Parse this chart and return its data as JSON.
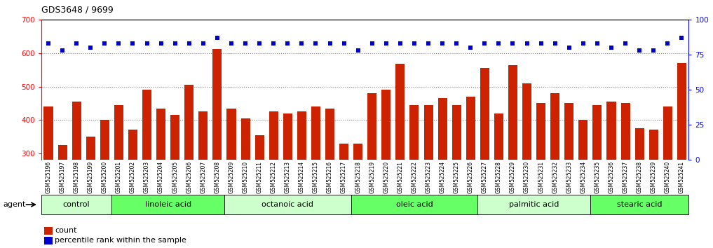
{
  "title": "GDS3648 / 9699",
  "samples": [
    "GSM525196",
    "GSM525197",
    "GSM525198",
    "GSM525199",
    "GSM525200",
    "GSM525201",
    "GSM525202",
    "GSM525203",
    "GSM525204",
    "GSM525205",
    "GSM525206",
    "GSM525207",
    "GSM525208",
    "GSM525209",
    "GSM525210",
    "GSM525211",
    "GSM525212",
    "GSM525213",
    "GSM525214",
    "GSM525215",
    "GSM525216",
    "GSM525217",
    "GSM525218",
    "GSM525219",
    "GSM525220",
    "GSM525221",
    "GSM525222",
    "GSM525223",
    "GSM525224",
    "GSM525225",
    "GSM525226",
    "GSM525227",
    "GSM525228",
    "GSM525229",
    "GSM525230",
    "GSM525231",
    "GSM525232",
    "GSM525233",
    "GSM525234",
    "GSM525235",
    "GSM525236",
    "GSM525237",
    "GSM525238",
    "GSM525239",
    "GSM525240",
    "GSM525241"
  ],
  "counts": [
    440,
    325,
    455,
    350,
    400,
    445,
    370,
    490,
    435,
    415,
    505,
    425,
    612,
    435,
    405,
    355,
    425,
    420,
    425,
    440,
    435,
    330,
    330,
    480,
    490,
    568,
    445,
    445,
    465,
    445,
    470,
    555,
    420,
    565,
    510,
    450,
    480,
    450,
    400,
    445,
    455,
    450,
    375,
    370,
    440,
    570
  ],
  "percentile_ranks": [
    83,
    78,
    83,
    80,
    83,
    83,
    83,
    83,
    83,
    83,
    83,
    83,
    87,
    83,
    83,
    83,
    83,
    83,
    83,
    83,
    83,
    83,
    78,
    83,
    83,
    83,
    83,
    83,
    83,
    83,
    80,
    83,
    83,
    83,
    83,
    83,
    83,
    80,
    83,
    83,
    80,
    83,
    78,
    78,
    83,
    87
  ],
  "bar_color": "#cc2200",
  "dot_color": "#0000cc",
  "ylim_left": [
    280,
    700
  ],
  "ylim_right": [
    0,
    100
  ],
  "yticks_left": [
    300,
    400,
    500,
    600,
    700
  ],
  "yticks_right": [
    0,
    25,
    50,
    75,
    100
  ],
  "grid_values": [
    400,
    500,
    600
  ],
  "groups": [
    {
      "label": "control",
      "start": 0,
      "end": 5
    },
    {
      "label": "linoleic acid",
      "start": 5,
      "end": 13
    },
    {
      "label": "octanoic acid",
      "start": 13,
      "end": 22
    },
    {
      "label": "oleic acid",
      "start": 22,
      "end": 31
    },
    {
      "label": "palmitic acid",
      "start": 31,
      "end": 39
    },
    {
      "label": "stearic acid",
      "start": 39,
      "end": 46
    }
  ],
  "group_colors": [
    "#ccffcc",
    "#66ff66",
    "#ccffcc",
    "#66ff66",
    "#ccffcc",
    "#66ff66"
  ],
  "legend_count_label": "count",
  "legend_pct_label": "percentile rank within the sample",
  "legend_count_color": "#cc2200",
  "legend_pct_color": "#0000cc",
  "agent_label": "agent",
  "xtick_bg": "#d8d8d8",
  "plot_bg": "#ffffff",
  "bar_bottom": 280
}
